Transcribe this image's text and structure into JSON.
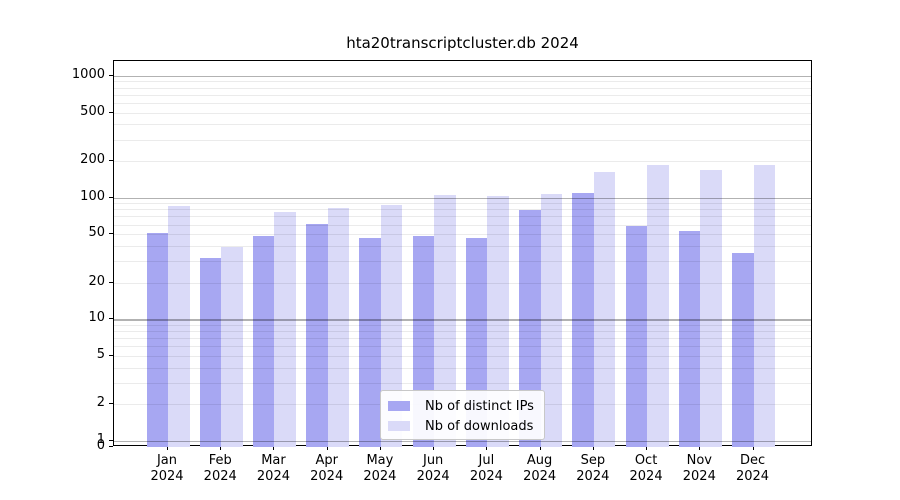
{
  "title": "hta20transcriptcluster.db 2024",
  "chart_data": {
    "type": "bar",
    "title": "hta20transcriptcluster.db 2024",
    "categories": [
      "Jan",
      "Feb",
      "Mar",
      "Apr",
      "May",
      "Jun",
      "Jul",
      "Aug",
      "Sep",
      "Oct",
      "Nov",
      "Dec"
    ],
    "year": "2024",
    "series": [
      {
        "name": "Nb of distinct IPs",
        "color": "#a7a7f2",
        "values": [
          51,
          32,
          48,
          61,
          47,
          48,
          47,
          79,
          110,
          58,
          53,
          35
        ]
      },
      {
        "name": "Nb of downloads",
        "color": "#dadaf8",
        "values": [
          85,
          39,
          76,
          82,
          87,
          106,
          103,
          108,
          161,
          185,
          168,
          185
        ]
      }
    ],
    "xlabel": "",
    "ylabel": "",
    "yscale": "symlog",
    "yticks": [
      1000,
      500,
      200,
      100,
      50,
      20,
      10,
      5,
      2,
      1,
      0
    ],
    "ylim": [
      0,
      1300
    ],
    "grid": true,
    "legend_position": "lower center"
  }
}
